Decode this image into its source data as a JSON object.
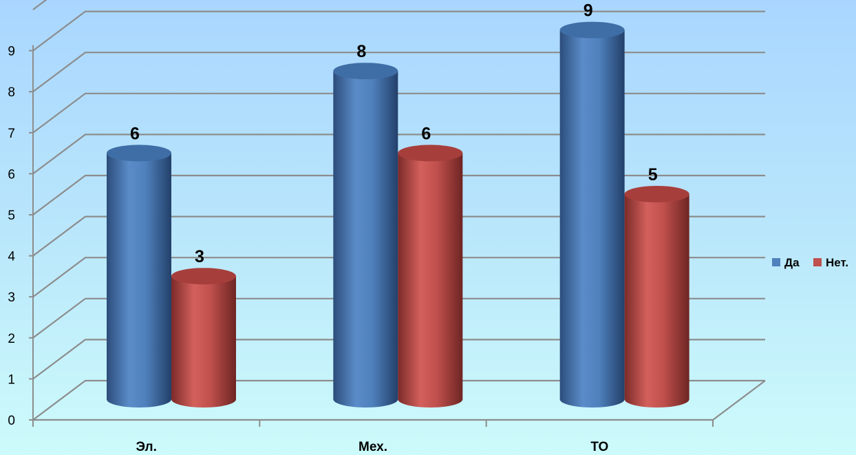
{
  "chart_data": {
    "type": "bar",
    "categories": [
      "Эл.",
      "Мех.",
      "ТО"
    ],
    "series": [
      {
        "name": "Да",
        "values": [
          6,
          8,
          9
        ],
        "color": "#4f81bd"
      },
      {
        "name": "Нет.",
        "values": [
          3,
          6,
          5
        ],
        "color": "#c0504d"
      }
    ],
    "y_ticks": [
      "0",
      "1",
      "2",
      "3",
      "4",
      "5",
      "6",
      "7",
      "8",
      "9"
    ],
    "ylim": [
      0,
      10
    ],
    "grid": true,
    "legend_position": "right",
    "style": "3d-cylinder"
  }
}
